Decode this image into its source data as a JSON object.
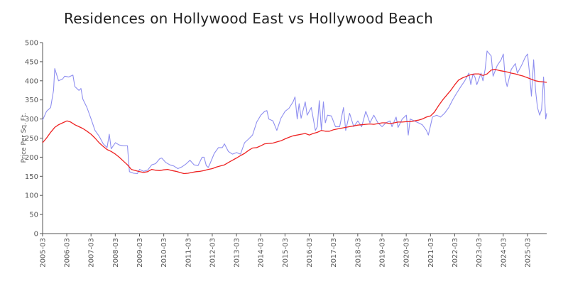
{
  "chart_data": {
    "type": "line",
    "title": "Residences on Hollywood East vs Hollywood Beach",
    "xlabel": "",
    "ylabel": "Price Per Sq. Ft.",
    "ylim": [
      0,
      500
    ],
    "y_ticks": [
      0,
      50,
      100,
      150,
      200,
      250,
      300,
      350,
      400,
      450,
      500
    ],
    "x_range": [
      2005.17,
      2025.96
    ],
    "x_tick_labels": [
      "2005-03",
      "2006-03",
      "2007-03",
      "2008-03",
      "2009-03",
      "2010-03",
      "2011-03",
      "2012-03",
      "2013-03",
      "2014-03",
      "2015-03",
      "2016-03",
      "2017-03",
      "2018-03",
      "2019-03",
      "2020-03",
      "2021-03",
      "2022-03",
      "2023-03",
      "2024-03",
      "2025-03"
    ],
    "grid": false,
    "legend": "none",
    "series": [
      {
        "name": "Residences on Hollywood East",
        "color": "#8f8ff0",
        "points": [
          [
            2005.17,
            297
          ],
          [
            2005.33,
            320
          ],
          [
            2005.5,
            330
          ],
          [
            2005.62,
            375
          ],
          [
            2005.67,
            432
          ],
          [
            2005.83,
            400
          ],
          [
            2006.0,
            405
          ],
          [
            2006.08,
            412
          ],
          [
            2006.25,
            410
          ],
          [
            2006.42,
            415
          ],
          [
            2006.5,
            385
          ],
          [
            2006.67,
            375
          ],
          [
            2006.75,
            380
          ],
          [
            2006.83,
            352
          ],
          [
            2007.0,
            330
          ],
          [
            2007.17,
            300
          ],
          [
            2007.33,
            270
          ],
          [
            2007.5,
            255
          ],
          [
            2007.67,
            235
          ],
          [
            2007.83,
            225
          ],
          [
            2007.92,
            260
          ],
          [
            2008.0,
            222
          ],
          [
            2008.17,
            238
          ],
          [
            2008.33,
            232
          ],
          [
            2008.5,
            230
          ],
          [
            2008.67,
            230
          ],
          [
            2008.75,
            162
          ],
          [
            2008.92,
            158
          ],
          [
            2009.08,
            157
          ],
          [
            2009.17,
            168
          ],
          [
            2009.33,
            163
          ],
          [
            2009.5,
            166
          ],
          [
            2009.67,
            180
          ],
          [
            2009.83,
            183
          ],
          [
            2010.0,
            196
          ],
          [
            2010.08,
            198
          ],
          [
            2010.25,
            186
          ],
          [
            2010.42,
            180
          ],
          [
            2010.58,
            177
          ],
          [
            2010.75,
            170
          ],
          [
            2010.92,
            175
          ],
          [
            2011.08,
            182
          ],
          [
            2011.25,
            192
          ],
          [
            2011.42,
            180
          ],
          [
            2011.58,
            178
          ],
          [
            2011.75,
            200
          ],
          [
            2011.83,
            200
          ],
          [
            2011.92,
            178
          ],
          [
            2012.0,
            173
          ],
          [
            2012.08,
            184
          ],
          [
            2012.25,
            210
          ],
          [
            2012.42,
            225
          ],
          [
            2012.58,
            225
          ],
          [
            2012.67,
            235
          ],
          [
            2012.83,
            215
          ],
          [
            2013.0,
            208
          ],
          [
            2013.17,
            212
          ],
          [
            2013.33,
            208
          ],
          [
            2013.5,
            238
          ],
          [
            2013.67,
            248
          ],
          [
            2013.83,
            258
          ],
          [
            2014.0,
            292
          ],
          [
            2014.17,
            310
          ],
          [
            2014.33,
            320
          ],
          [
            2014.42,
            322
          ],
          [
            2014.5,
            300
          ],
          [
            2014.67,
            295
          ],
          [
            2014.83,
            270
          ],
          [
            2015.0,
            302
          ],
          [
            2015.17,
            320
          ],
          [
            2015.33,
            328
          ],
          [
            2015.5,
            345
          ],
          [
            2015.58,
            358
          ],
          [
            2015.67,
            300
          ],
          [
            2015.75,
            340
          ],
          [
            2015.83,
            302
          ],
          [
            2016.0,
            345
          ],
          [
            2016.08,
            310
          ],
          [
            2016.25,
            330
          ],
          [
            2016.42,
            270
          ],
          [
            2016.5,
            280
          ],
          [
            2016.58,
            348
          ],
          [
            2016.67,
            270
          ],
          [
            2016.75,
            345
          ],
          [
            2016.83,
            290
          ],
          [
            2016.92,
            310
          ],
          [
            2017.08,
            308
          ],
          [
            2017.25,
            280
          ],
          [
            2017.42,
            280
          ],
          [
            2017.58,
            330
          ],
          [
            2017.67,
            270
          ],
          [
            2017.83,
            315
          ],
          [
            2018.0,
            280
          ],
          [
            2018.17,
            295
          ],
          [
            2018.33,
            280
          ],
          [
            2018.5,
            320
          ],
          [
            2018.67,
            290
          ],
          [
            2018.83,
            310
          ],
          [
            2019.0,
            290
          ],
          [
            2019.17,
            280
          ],
          [
            2019.33,
            290
          ],
          [
            2019.5,
            295
          ],
          [
            2019.58,
            280
          ],
          [
            2019.75,
            305
          ],
          [
            2019.83,
            278
          ],
          [
            2020.0,
            300
          ],
          [
            2020.17,
            310
          ],
          [
            2020.25,
            258
          ],
          [
            2020.33,
            300
          ],
          [
            2020.5,
            295
          ],
          [
            2020.67,
            290
          ],
          [
            2020.83,
            285
          ],
          [
            2021.0,
            270
          ],
          [
            2021.08,
            258
          ],
          [
            2021.25,
            305
          ],
          [
            2021.42,
            310
          ],
          [
            2021.58,
            305
          ],
          [
            2021.75,
            315
          ],
          [
            2021.92,
            330
          ],
          [
            2022.08,
            350
          ],
          [
            2022.25,
            368
          ],
          [
            2022.42,
            385
          ],
          [
            2022.58,
            400
          ],
          [
            2022.75,
            420
          ],
          [
            2022.83,
            390
          ],
          [
            2022.92,
            418
          ],
          [
            2023.0,
            410
          ],
          [
            2023.08,
            390
          ],
          [
            2023.25,
            420
          ],
          [
            2023.33,
            400
          ],
          [
            2023.42,
            430
          ],
          [
            2023.5,
            478
          ],
          [
            2023.67,
            465
          ],
          [
            2023.75,
            412
          ],
          [
            2023.92,
            440
          ],
          [
            2024.08,
            455
          ],
          [
            2024.17,
            470
          ],
          [
            2024.25,
            405
          ],
          [
            2024.33,
            385
          ],
          [
            2024.5,
            430
          ],
          [
            2024.67,
            445
          ],
          [
            2024.75,
            420
          ],
          [
            2024.92,
            440
          ],
          [
            2025.08,
            462
          ],
          [
            2025.17,
            470
          ],
          [
            2025.25,
            420
          ],
          [
            2025.33,
            360
          ],
          [
            2025.42,
            455
          ],
          [
            2025.5,
            375
          ],
          [
            2025.58,
            330
          ],
          [
            2025.67,
            310
          ],
          [
            2025.75,
            325
          ],
          [
            2025.83,
            410
          ],
          [
            2025.92,
            300
          ],
          [
            2025.96,
            315
          ]
        ]
      },
      {
        "name": "Hollywood Beach",
        "color": "#ee2222",
        "points": [
          [
            2005.17,
            238
          ],
          [
            2005.33,
            250
          ],
          [
            2005.5,
            265
          ],
          [
            2005.67,
            278
          ],
          [
            2005.83,
            285
          ],
          [
            2006.0,
            290
          ],
          [
            2006.17,
            295
          ],
          [
            2006.33,
            292
          ],
          [
            2006.5,
            285
          ],
          [
            2006.67,
            280
          ],
          [
            2006.83,
            275
          ],
          [
            2007.0,
            268
          ],
          [
            2007.17,
            260
          ],
          [
            2007.33,
            250
          ],
          [
            2007.5,
            238
          ],
          [
            2007.67,
            228
          ],
          [
            2007.83,
            220
          ],
          [
            2008.0,
            215
          ],
          [
            2008.17,
            208
          ],
          [
            2008.33,
            200
          ],
          [
            2008.5,
            190
          ],
          [
            2008.67,
            180
          ],
          [
            2008.83,
            168
          ],
          [
            2009.0,
            165
          ],
          [
            2009.17,
            162
          ],
          [
            2009.33,
            160
          ],
          [
            2009.5,
            162
          ],
          [
            2009.67,
            168
          ],
          [
            2009.83,
            166
          ],
          [
            2010.0,
            165
          ],
          [
            2010.17,
            167
          ],
          [
            2010.33,
            168
          ],
          [
            2010.5,
            165
          ],
          [
            2010.67,
            163
          ],
          [
            2010.83,
            160
          ],
          [
            2011.0,
            157
          ],
          [
            2011.17,
            158
          ],
          [
            2011.33,
            160
          ],
          [
            2011.5,
            162
          ],
          [
            2011.67,
            163
          ],
          [
            2011.83,
            165
          ],
          [
            2012.0,
            168
          ],
          [
            2012.17,
            170
          ],
          [
            2012.33,
            174
          ],
          [
            2012.5,
            177
          ],
          [
            2012.67,
            180
          ],
          [
            2012.83,
            186
          ],
          [
            2013.0,
            192
          ],
          [
            2013.17,
            198
          ],
          [
            2013.33,
            204
          ],
          [
            2013.5,
            210
          ],
          [
            2013.67,
            218
          ],
          [
            2013.83,
            224
          ],
          [
            2014.0,
            225
          ],
          [
            2014.17,
            230
          ],
          [
            2014.33,
            235
          ],
          [
            2014.5,
            236
          ],
          [
            2014.67,
            237
          ],
          [
            2014.83,
            240
          ],
          [
            2015.0,
            243
          ],
          [
            2015.17,
            248
          ],
          [
            2015.33,
            252
          ],
          [
            2015.5,
            256
          ],
          [
            2015.67,
            258
          ],
          [
            2015.83,
            260
          ],
          [
            2016.0,
            262
          ],
          [
            2016.17,
            258
          ],
          [
            2016.33,
            262
          ],
          [
            2016.5,
            265
          ],
          [
            2016.67,
            270
          ],
          [
            2016.83,
            268
          ],
          [
            2017.0,
            268
          ],
          [
            2017.17,
            272
          ],
          [
            2017.33,
            274
          ],
          [
            2017.5,
            276
          ],
          [
            2017.67,
            278
          ],
          [
            2017.83,
            280
          ],
          [
            2018.0,
            282
          ],
          [
            2018.17,
            284
          ],
          [
            2018.33,
            285
          ],
          [
            2018.5,
            286
          ],
          [
            2018.67,
            287
          ],
          [
            2018.83,
            286
          ],
          [
            2019.0,
            288
          ],
          [
            2019.17,
            290
          ],
          [
            2019.33,
            290
          ],
          [
            2019.5,
            288
          ],
          [
            2019.67,
            290
          ],
          [
            2019.83,
            292
          ],
          [
            2020.0,
            292
          ],
          [
            2020.17,
            293
          ],
          [
            2020.33,
            293
          ],
          [
            2020.5,
            295
          ],
          [
            2020.67,
            297
          ],
          [
            2020.83,
            300
          ],
          [
            2021.0,
            305
          ],
          [
            2021.17,
            308
          ],
          [
            2021.33,
            318
          ],
          [
            2021.5,
            335
          ],
          [
            2021.67,
            350
          ],
          [
            2021.83,
            362
          ],
          [
            2022.0,
            375
          ],
          [
            2022.17,
            390
          ],
          [
            2022.33,
            402
          ],
          [
            2022.5,
            408
          ],
          [
            2022.67,
            412
          ],
          [
            2022.83,
            416
          ],
          [
            2023.0,
            418
          ],
          [
            2023.17,
            418
          ],
          [
            2023.33,
            414
          ],
          [
            2023.5,
            418
          ],
          [
            2023.67,
            428
          ],
          [
            2023.83,
            430
          ],
          [
            2024.0,
            427
          ],
          [
            2024.17,
            425
          ],
          [
            2024.33,
            423
          ],
          [
            2024.5,
            420
          ],
          [
            2024.67,
            418
          ],
          [
            2024.83,
            415
          ],
          [
            2025.0,
            412
          ],
          [
            2025.17,
            408
          ],
          [
            2025.33,
            404
          ],
          [
            2025.5,
            400
          ],
          [
            2025.67,
            398
          ],
          [
            2025.83,
            397
          ],
          [
            2025.96,
            396
          ]
        ]
      }
    ]
  }
}
